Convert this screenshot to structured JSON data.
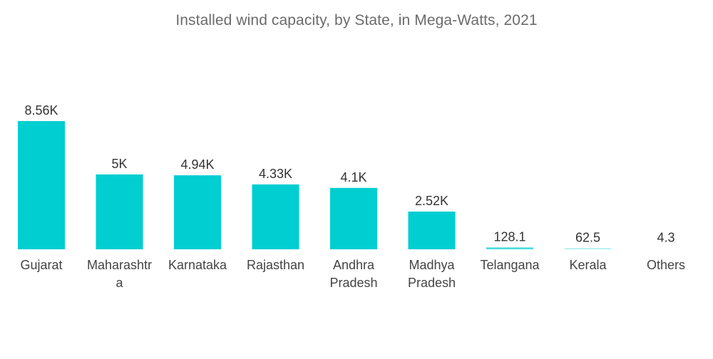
{
  "chart_data": {
    "type": "bar",
    "title": "Installed wind capacity, by State, in Mega-Watts, 2021",
    "xlabel": "",
    "ylabel": "",
    "ylim": [
      0,
      8560
    ],
    "grid": false,
    "legend": "none",
    "bar_color": "#00CED1",
    "categories": [
      "Gujarat",
      "Maharashtra",
      "Karnataka",
      "Rajasthan",
      "Andhra Pradesh",
      "Madhya Pradesh",
      "Telangana",
      "Kerala",
      "Others"
    ],
    "category_lines": [
      [
        "Gujarat"
      ],
      [
        "Maharashtr",
        "a"
      ],
      [
        "Karnataka"
      ],
      [
        "Rajasthan"
      ],
      [
        "Andhra",
        "Pradesh"
      ],
      [
        "Madhya",
        "Pradesh"
      ],
      [
        "Telangana"
      ],
      [
        "Kerala"
      ],
      [
        "Others"
      ]
    ],
    "values": [
      8560,
      5000,
      4940,
      4330,
      4100,
      2520,
      128.1,
      62.5,
      4.3
    ],
    "data_labels": [
      "8.56K",
      "5K",
      "4.94K",
      "4.33K",
      "4.1K",
      "2.52K",
      "128.1",
      "62.5",
      "4.3"
    ]
  }
}
